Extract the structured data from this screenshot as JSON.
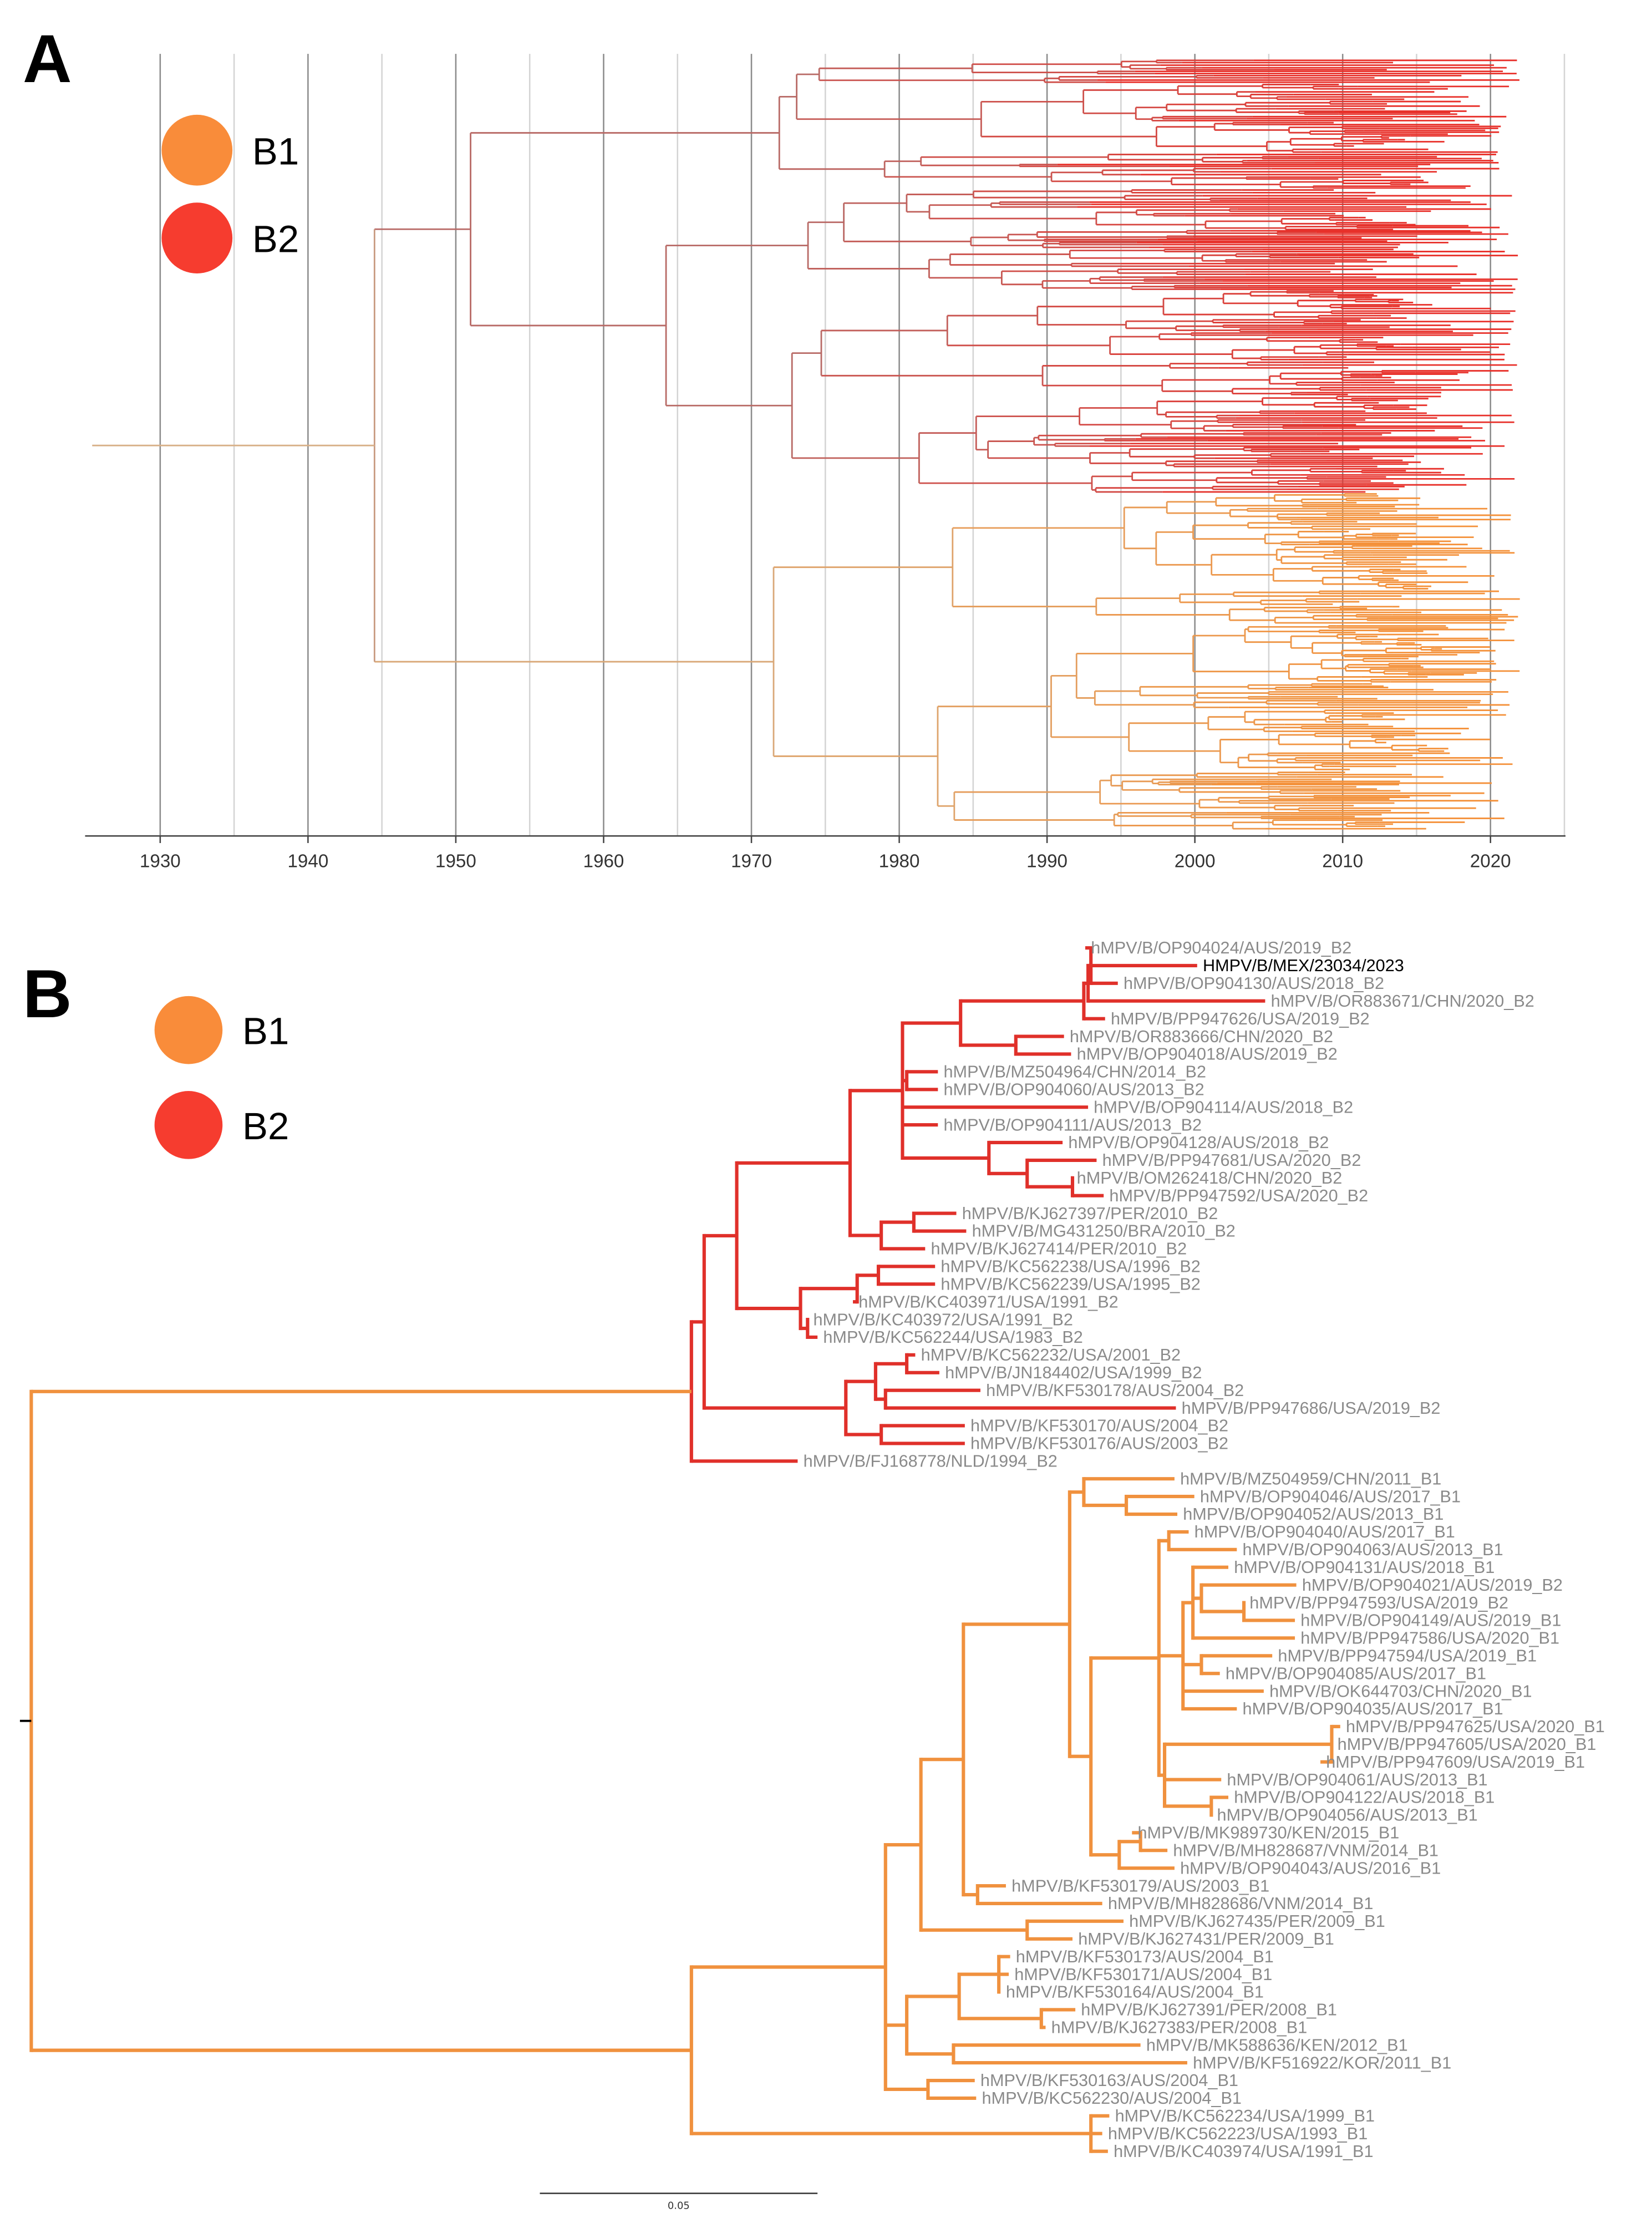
{
  "figure": {
    "panel_a_label": "A",
    "panel_b_label": "B"
  },
  "legend": [
    {
      "label": "B1",
      "color": "#f98c3a"
    },
    {
      "label": "B2",
      "color": "#f63c2f"
    }
  ],
  "chart_data": {
    "type": "tree",
    "panel_a": {
      "kind": "time-scaled phylogeny",
      "xlim": [
        1925,
        2025
      ],
      "x_ticks": [
        1930,
        1940,
        1950,
        1960,
        1970,
        1980,
        1990,
        2000,
        2010,
        2020
      ],
      "minor_grid_step": 5,
      "root_node_year": 1944.5,
      "clades": [
        {
          "name": "B2",
          "node_year": 1951,
          "color_early": "#b86a66",
          "color_late": "#e8302a"
        },
        {
          "name": "B1",
          "node_year": 1971.5,
          "color_early": "#d9a878",
          "color_late": "#f4913a"
        }
      ]
    },
    "panel_b": {
      "kind": "genetic distance phylogeny",
      "scale_bar": "0.05",
      "clade_colors": {
        "B2": "#e0302a",
        "B1": "#f0913e"
      },
      "highlight_tip": 2,
      "tips": [
        "hMPV/B/OP904024/AUS/2019_B2",
        "HMPV/B/MEX/23034/2023",
        "hMPV/B/OP904130/AUS/2018_B2",
        "hMPV/B/OR883671/CHN/2020_B2",
        "hMPV/B/PP947626/USA/2019_B2",
        "hMPV/B/OR883666/CHN/2020_B2",
        "hMPV/B/OP904018/AUS/2019_B2",
        "hMPV/B/MZ504964/CHN/2014_B2",
        "hMPV/B/OP904060/AUS/2013_B2",
        "hMPV/B/OP904114/AUS/2018_B2",
        "hMPV/B/OP904111/AUS/2013_B2",
        "hMPV/B/OP904128/AUS/2018_B2",
        "hMPV/B/PP947681/USA/2020_B2",
        "hMPV/B/OM262418/CHN/2020_B2",
        "hMPV/B/PP947592/USA/2020_B2",
        "hMPV/B/KJ627397/PER/2010_B2",
        "hMPV/B/MG431250/BRA/2010_B2",
        "hMPV/B/KJ627414/PER/2010_B2",
        "hMPV/B/KC562238/USA/1996_B2",
        "hMPV/B/KC562239/USA/1995_B2",
        "hMPV/B/KC403971/USA/1991_B2",
        "hMPV/B/KC403972/USA/1991_B2",
        "hMPV/B/KC562244/USA/1983_B2",
        "hMPV/B/KC562232/USA/2001_B2",
        "hMPV/B/JN184402/USA/1999_B2",
        "hMPV/B/KF530178/AUS/2004_B2",
        "hMPV/B/PP947686/USA/2019_B2",
        "hMPV/B/KF530170/AUS/2004_B2",
        "hMPV/B/KF530176/AUS/2003_B2",
        "hMPV/B/FJ168778/NLD/1994_B2",
        "hMPV/B/MZ504959/CHN/2011_B1",
        "hMPV/B/OP904046/AUS/2017_B1",
        "hMPV/B/OP904052/AUS/2013_B1",
        "hMPV/B/OP904040/AUS/2017_B1",
        "hMPV/B/OP904063/AUS/2013_B1",
        "hMPV/B/OP904131/AUS/2018_B1",
        "hMPV/B/OP904021/AUS/2019_B2",
        "hMPV/B/PP947593/USA/2019_B2",
        "hMPV/B/OP904149/AUS/2019_B1",
        "hMPV/B/PP947586/USA/2020_B1",
        "hMPV/B/PP947594/USA/2019_B1",
        "hMPV/B/OP904085/AUS/2017_B1",
        "hMPV/B/OK644703/CHN/2020_B1",
        "hMPV/B/OP904035/AUS/2017_B1",
        "hMPV/B/PP947625/USA/2020_B1",
        "hMPV/B/PP947605/USA/2020_B1",
        "hMPV/B/PP947609/USA/2019_B1",
        "hMPV/B/OP904061/AUS/2013_B1",
        "hMPV/B/OP904122/AUS/2018_B1",
        "hMPV/B/OP904056/AUS/2013_B1",
        "hMPV/B/MK989730/KEN/2015_B1",
        "hMPV/B/MH828687/VNM/2014_B1",
        "hMPV/B/OP904043/AUS/2016_B1",
        "hMPV/B/KF530179/AUS/2003_B1",
        "hMPV/B/MH828686/VNM/2014_B1",
        "hMPV/B/KJ627435/PER/2009_B1",
        "hMPV/B/KJ627431/PER/2009_B1",
        "hMPV/B/KF530173/AUS/2004_B1",
        "hMPV/B/KF530171/AUS/2004_B1",
        "hMPV/B/KF530164/AUS/2004_B1",
        "hMPV/B/KJ627391/PER/2008_B1",
        "hMPV/B/KJ627383/PER/2008_B1",
        "hMPV/B/MK588636/KEN/2012_B1",
        "hMPV/B/KF516922/KOR/2011_B1",
        "hMPV/B/KF530163/AUS/2004_B1",
        "hMPV/B/KC562230/AUS/2004_B1",
        "hMPV/B/KC562234/USA/1999_B1",
        "hMPV/B/KC562223/USA/1993_B1",
        "hMPV/B/KC403974/USA/1991_B1"
      ]
    }
  }
}
